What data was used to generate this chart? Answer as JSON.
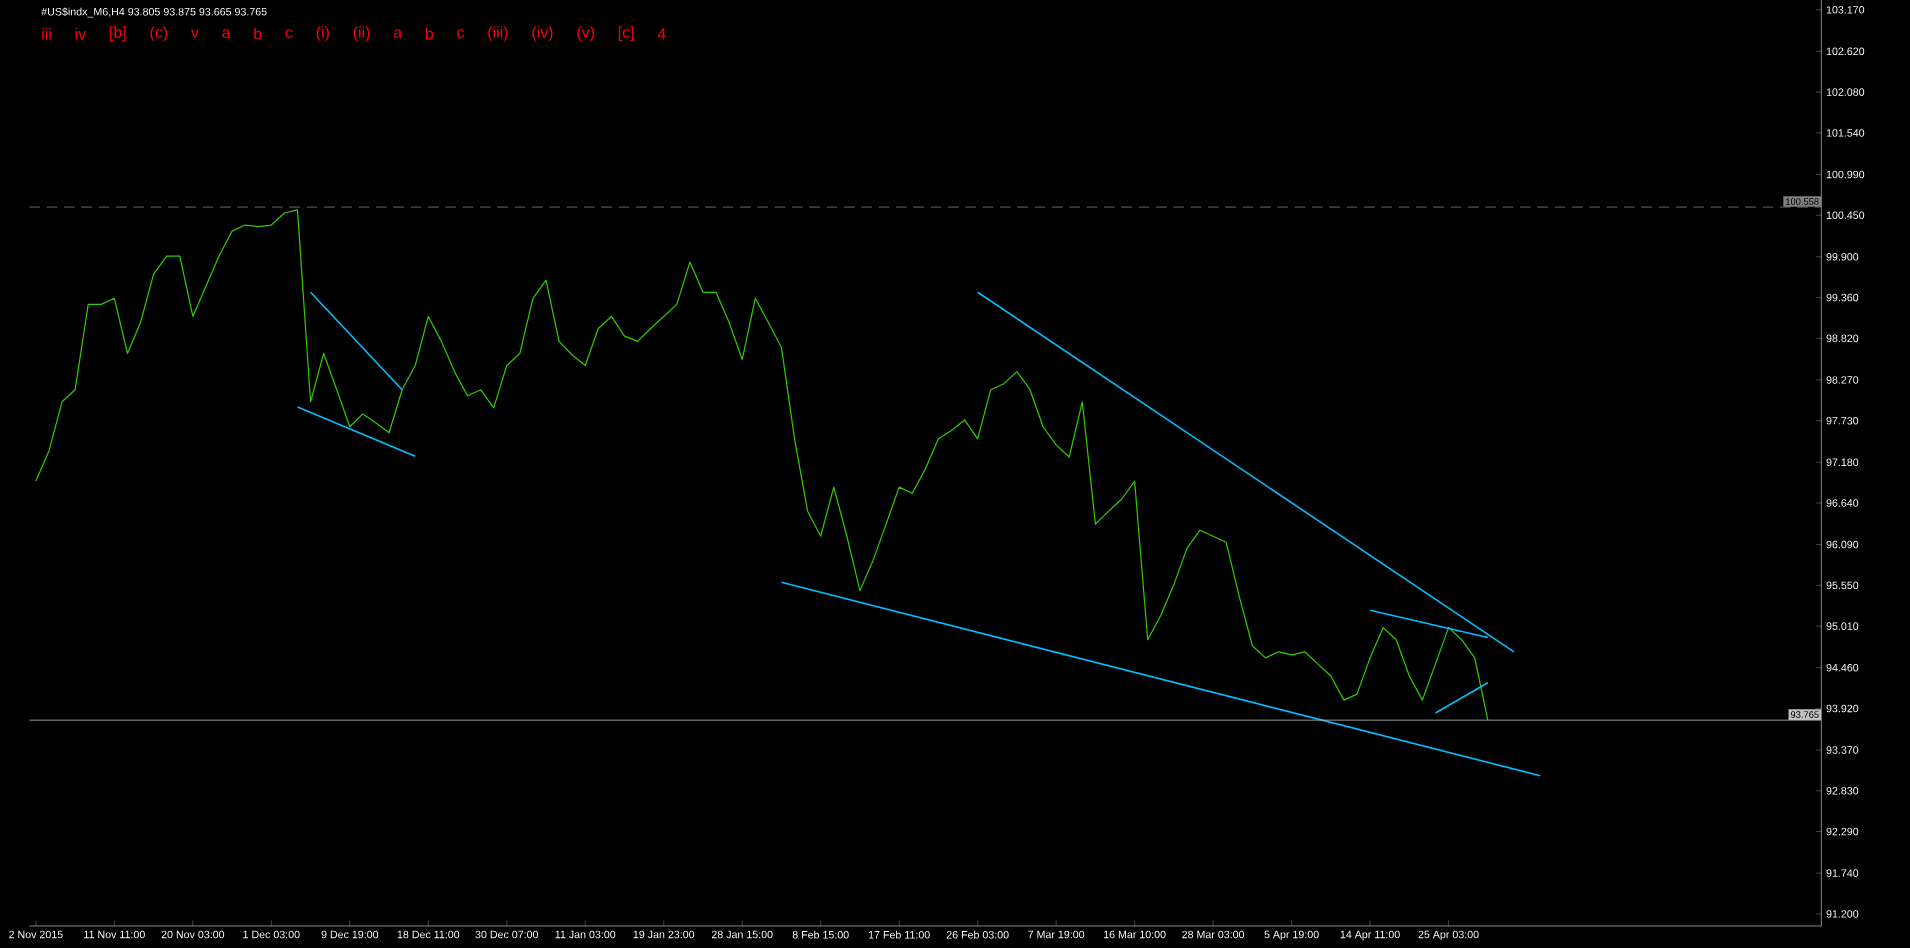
{
  "chart_data": {
    "type": "line",
    "title": "#US$indx_M6,H4  93.805 93.875 93.665 93.765",
    "marker": "none",
    "ylim": [
      91.04,
      103.3
    ],
    "categories": [
      "2 Nov 2015",
      null,
      null,
      null,
      null,
      null,
      "11 Nov 11:00",
      null,
      null,
      null,
      null,
      null,
      "20 Nov 03:00",
      null,
      null,
      null,
      null,
      null,
      "1 Dec 03:00",
      null,
      null,
      null,
      null,
      null,
      "9 Dec 19:00",
      null,
      null,
      null,
      null,
      null,
      "18 Dec 11:00",
      null,
      null,
      null,
      null,
      null,
      "30 Dec 07:00",
      null,
      null,
      null,
      null,
      null,
      "11 Jan 03:00",
      null,
      null,
      null,
      null,
      null,
      "19 Jan 23:00",
      null,
      null,
      null,
      null,
      null,
      "28 Jan 15:00",
      null,
      null,
      null,
      null,
      null,
      "8 Feb 15:00",
      null,
      null,
      null,
      null,
      null,
      "17 Feb 11:00",
      null,
      null,
      null,
      null,
      null,
      "26 Feb 03:00",
      null,
      null,
      null,
      null,
      null,
      "7 Mar 19:00",
      null,
      null,
      null,
      null,
      null,
      "16 Mar 10:00",
      null,
      null,
      null,
      null,
      null,
      "28 Mar 03:00",
      null,
      null,
      null,
      null,
      null,
      "5 Apr 19:00",
      null,
      null,
      null,
      null,
      null,
      "14 Apr 11:00",
      null,
      null,
      null,
      null,
      null,
      "25 Apr 03:00",
      null,
      null,
      null,
      null,
      null,
      null,
      null,
      null,
      null,
      null,
      null,
      null,
      null,
      null,
      null,
      null,
      null,
      null,
      null,
      null,
      null,
      null,
      null,
      null,
      null,
      null,
      null,
      null
    ],
    "yticks": [
      {
        "value": 91.2,
        "label": "91.200"
      },
      {
        "value": 91.74,
        "label": "91.740"
      },
      {
        "value": 92.29,
        "label": "92.290"
      },
      {
        "value": 92.83,
        "label": "92.830"
      },
      {
        "value": 93.37,
        "label": "93.370"
      },
      {
        "value": 93.92,
        "label": "93.920"
      },
      {
        "value": 94.46,
        "label": "94.460"
      },
      {
        "value": 95.01,
        "label": "95.010"
      },
      {
        "value": 95.55,
        "label": "95.550"
      },
      {
        "value": 96.09,
        "label": "96.090"
      },
      {
        "value": 96.64,
        "label": "96.640"
      },
      {
        "value": 97.18,
        "label": "97.180"
      },
      {
        "value": 97.73,
        "label": "97.730"
      },
      {
        "value": 98.27,
        "label": "98.270"
      },
      {
        "value": 98.82,
        "label": "98.820"
      },
      {
        "value": 99.36,
        "label": "99.360"
      },
      {
        "value": 99.9,
        "label": "99.900"
      },
      {
        "value": 100.45,
        "label": "100.450"
      },
      {
        "value": 100.99,
        "label": "100.990"
      },
      {
        "value": 101.54,
        "label": "101.540"
      },
      {
        "value": 102.08,
        "label": "102.080"
      },
      {
        "value": 102.62,
        "label": "102.620"
      },
      {
        "value": 103.17,
        "label": "103.170"
      }
    ],
    "series": [
      {
        "color": "#33cc00",
        "values": [
          96.93,
          97.33,
          97.98,
          98.14,
          99.27,
          99.27,
          99.35,
          98.62,
          99.03,
          99.67,
          99.91,
          99.91,
          99.11,
          99.51,
          99.91,
          100.24,
          100.32,
          100.3,
          100.32,
          100.48,
          100.52,
          97.98,
          98.62,
          98.14,
          97.65,
          97.82,
          97.7,
          97.57,
          98.14,
          98.46,
          99.11,
          98.78,
          98.38,
          98.06,
          98.14,
          97.9,
          98.46,
          98.62,
          99.35,
          99.59,
          98.78,
          98.6,
          98.46,
          98.95,
          99.11,
          98.85,
          98.78,
          98.95,
          99.11,
          99.27,
          99.83,
          99.43,
          99.43,
          99.03,
          98.54,
          99.35,
          99.03,
          98.7,
          97.49,
          96.53,
          96.2,
          96.85,
          96.2,
          95.48,
          95.88,
          96.36,
          96.85,
          96.77,
          97.09,
          97.49,
          97.6,
          97.74,
          97.49,
          98.14,
          98.22,
          98.38,
          98.14,
          97.65,
          97.41,
          97.25,
          97.98,
          96.36,
          96.53,
          96.69,
          96.93,
          94.83,
          95.15,
          95.56,
          96.04,
          96.28,
          96.2,
          96.12,
          95.4,
          94.75,
          94.59,
          94.67,
          94.63,
          94.67,
          94.51,
          94.35,
          94.03,
          94.11,
          94.59,
          94.99,
          94.83,
          94.35,
          94.03,
          94.51,
          94.99,
          94.83,
          94.59,
          93.77,
          null,
          null,
          null,
          null,
          null,
          null,
          null,
          null,
          null,
          null,
          null,
          null,
          null,
          null,
          null,
          null,
          null,
          null,
          null,
          null,
          null,
          null,
          null,
          null,
          null
        ]
      },
      {
        "color": "#00bfff",
        "values": [
          null,
          null,
          null,
          null,
          null,
          null,
          null,
          null,
          null,
          null,
          null,
          null,
          null,
          null,
          null,
          null,
          null,
          null,
          null,
          null,
          null,
          99.43,
          null,
          null,
          null,
          null,
          null,
          null,
          98.14,
          null,
          null,
          null,
          null,
          null,
          null,
          null,
          null,
          null,
          null,
          null,
          null,
          null,
          null,
          null,
          null,
          null,
          null,
          null,
          null,
          null,
          null,
          null,
          null,
          null,
          null,
          null,
          null,
          null,
          null,
          null,
          null,
          null,
          null,
          null,
          null,
          null,
          null,
          null,
          null,
          null,
          null,
          null,
          null,
          null,
          null,
          null,
          null,
          null,
          null,
          null,
          null,
          null,
          null,
          null,
          null,
          null,
          null,
          null,
          null,
          null,
          null,
          null,
          null,
          null,
          null,
          null,
          null,
          null,
          null,
          null,
          null,
          null,
          null,
          null,
          null,
          null,
          null,
          null,
          null,
          null,
          null,
          null,
          null,
          null,
          null,
          null,
          null,
          null,
          null,
          null,
          null,
          null,
          null,
          null,
          null,
          null,
          null,
          null,
          null,
          null,
          null,
          null,
          null,
          null,
          null,
          null,
          null
        ]
      },
      {
        "color": "#00bfff",
        "values": [
          null,
          null,
          null,
          null,
          null,
          null,
          null,
          null,
          null,
          null,
          null,
          null,
          null,
          null,
          null,
          null,
          null,
          null,
          null,
          null,
          97.91,
          null,
          null,
          null,
          null,
          null,
          null,
          null,
          null,
          97.26,
          null,
          null,
          null,
          null,
          null,
          null,
          null,
          null,
          null,
          null,
          null,
          null,
          null,
          null,
          null,
          null,
          null,
          null,
          null,
          null,
          null,
          null,
          null,
          null,
          null,
          null,
          null,
          null,
          null,
          null,
          null,
          null,
          null,
          null,
          null,
          null,
          null,
          null,
          null,
          null,
          null,
          null,
          null,
          null,
          null,
          null,
          null,
          null,
          null,
          null,
          null,
          null,
          null,
          null,
          null,
          null,
          null,
          null,
          null,
          null,
          null,
          null,
          null,
          null,
          null,
          null,
          null,
          null,
          null,
          null,
          null,
          null,
          null,
          null,
          null,
          null,
          null,
          null,
          null,
          null,
          null,
          null,
          null,
          null,
          null,
          null,
          null,
          null,
          null,
          null,
          null,
          null,
          null,
          null,
          null,
          null,
          null,
          null,
          null,
          null,
          null,
          null,
          null,
          null,
          null,
          null,
          null
        ]
      },
      {
        "color": "#00bfff",
        "values": [
          null,
          null,
          null,
          null,
          null,
          null,
          null,
          null,
          null,
          null,
          null,
          null,
          null,
          null,
          null,
          null,
          null,
          null,
          null,
          null,
          null,
          null,
          null,
          null,
          null,
          null,
          null,
          null,
          null,
          null,
          null,
          null,
          null,
          null,
          null,
          null,
          null,
          null,
          null,
          null,
          null,
          null,
          null,
          null,
          null,
          null,
          null,
          null,
          null,
          null,
          null,
          null,
          null,
          null,
          null,
          null,
          null,
          95.59,
          null,
          null,
          null,
          null,
          null,
          null,
          null,
          null,
          null,
          null,
          null,
          null,
          null,
          null,
          null,
          null,
          null,
          null,
          null,
          null,
          null,
          null,
          null,
          null,
          null,
          null,
          null,
          null,
          null,
          null,
          null,
          null,
          null,
          null,
          null,
          null,
          null,
          null,
          null,
          null,
          null,
          null,
          null,
          null,
          null,
          null,
          null,
          null,
          null,
          null,
          null,
          null,
          null,
          null,
          null,
          null,
          null,
          93.03,
          null,
          null,
          null,
          null,
          null,
          null,
          null,
          null,
          null,
          null,
          null,
          null,
          null,
          null,
          null,
          null,
          null,
          null,
          null,
          null,
          null
        ]
      },
      {
        "color": "#00bfff",
        "values": [
          null,
          null,
          null,
          null,
          null,
          null,
          null,
          null,
          null,
          null,
          null,
          null,
          null,
          null,
          null,
          null,
          null,
          null,
          null,
          null,
          null,
          null,
          null,
          null,
          null,
          null,
          null,
          null,
          null,
          null,
          null,
          null,
          null,
          null,
          null,
          null,
          null,
          null,
          null,
          null,
          null,
          null,
          null,
          null,
          null,
          null,
          null,
          null,
          null,
          null,
          null,
          null,
          null,
          null,
          null,
          null,
          null,
          null,
          null,
          null,
          null,
          null,
          null,
          null,
          null,
          null,
          null,
          null,
          null,
          null,
          null,
          null,
          99.43,
          null,
          null,
          null,
          null,
          null,
          null,
          null,
          null,
          null,
          null,
          null,
          null,
          null,
          null,
          null,
          null,
          null,
          null,
          null,
          null,
          null,
          null,
          null,
          null,
          null,
          null,
          null,
          null,
          null,
          null,
          null,
          null,
          null,
          null,
          null,
          null,
          null,
          null,
          null,
          null,
          94.67,
          null,
          null,
          null,
          null,
          null,
          null,
          null,
          null,
          null,
          null,
          null,
          null,
          null,
          null,
          null,
          null,
          null,
          null,
          null,
          null,
          null,
          null,
          null
        ]
      },
      {
        "color": "#00bfff",
        "values": [
          null,
          null,
          null,
          null,
          null,
          null,
          null,
          null,
          null,
          null,
          null,
          null,
          null,
          null,
          null,
          null,
          null,
          null,
          null,
          null,
          null,
          null,
          null,
          null,
          null,
          null,
          null,
          null,
          null,
          null,
          null,
          null,
          null,
          null,
          null,
          null,
          null,
          null,
          null,
          null,
          null,
          null,
          null,
          null,
          null,
          null,
          null,
          null,
          null,
          null,
          null,
          null,
          null,
          null,
          null,
          null,
          null,
          null,
          null,
          null,
          null,
          null,
          null,
          null,
          null,
          null,
          null,
          null,
          null,
          null,
          null,
          null,
          null,
          null,
          null,
          null,
          null,
          null,
          null,
          null,
          null,
          null,
          null,
          null,
          null,
          null,
          null,
          null,
          null,
          null,
          null,
          null,
          null,
          null,
          null,
          null,
          null,
          null,
          null,
          null,
          null,
          null,
          95.22,
          null,
          null,
          null,
          null,
          null,
          null,
          null,
          null,
          94.86,
          null,
          null,
          null,
          null,
          null,
          null,
          null,
          null,
          null,
          null,
          null,
          null,
          null,
          null,
          null,
          null,
          null,
          null,
          null,
          null,
          null,
          null,
          null,
          null,
          null
        ]
      },
      {
        "color": "#00bfff",
        "values": [
          null,
          null,
          null,
          null,
          null,
          null,
          null,
          null,
          null,
          null,
          null,
          null,
          null,
          null,
          null,
          null,
          null,
          null,
          null,
          null,
          null,
          null,
          null,
          null,
          null,
          null,
          null,
          null,
          null,
          null,
          null,
          null,
          null,
          null,
          null,
          null,
          null,
          null,
          null,
          null,
          null,
          null,
          null,
          null,
          null,
          null,
          null,
          null,
          null,
          null,
          null,
          null,
          null,
          null,
          null,
          null,
          null,
          null,
          null,
          null,
          null,
          null,
          null,
          null,
          null,
          null,
          null,
          null,
          null,
          null,
          null,
          null,
          null,
          null,
          null,
          null,
          null,
          null,
          null,
          null,
          null,
          null,
          null,
          null,
          null,
          null,
          null,
          null,
          null,
          null,
          null,
          null,
          null,
          null,
          null,
          null,
          null,
          null,
          null,
          null,
          null,
          null,
          null,
          null,
          null,
          null,
          null,
          93.86,
          null,
          null,
          null,
          94.26,
          null,
          null,
          null,
          null,
          null,
          null,
          null,
          null,
          null,
          null,
          null,
          null,
          null,
          null,
          null,
          null,
          null,
          null,
          null,
          null,
          null,
          null,
          null,
          null,
          null
        ]
      }
    ],
    "ref_lines": [
      {
        "axis": "y",
        "value": 100.558,
        "label": "100.558",
        "color": "#808080",
        "line_style": "dashed"
      },
      {
        "axis": "y",
        "value": 93.765,
        "label": "93.765",
        "color": "#c0c0c0",
        "line_style": "solid"
      }
    ],
    "annotations": [
      "iii",
      "iv",
      "[b]",
      "(c)",
      "v",
      "a",
      "b",
      "c",
      "(i)",
      "(ii)",
      "a",
      "b",
      "c",
      "(iii)",
      "(iv)",
      "(v)",
      "[c]",
      "4"
    ]
  }
}
